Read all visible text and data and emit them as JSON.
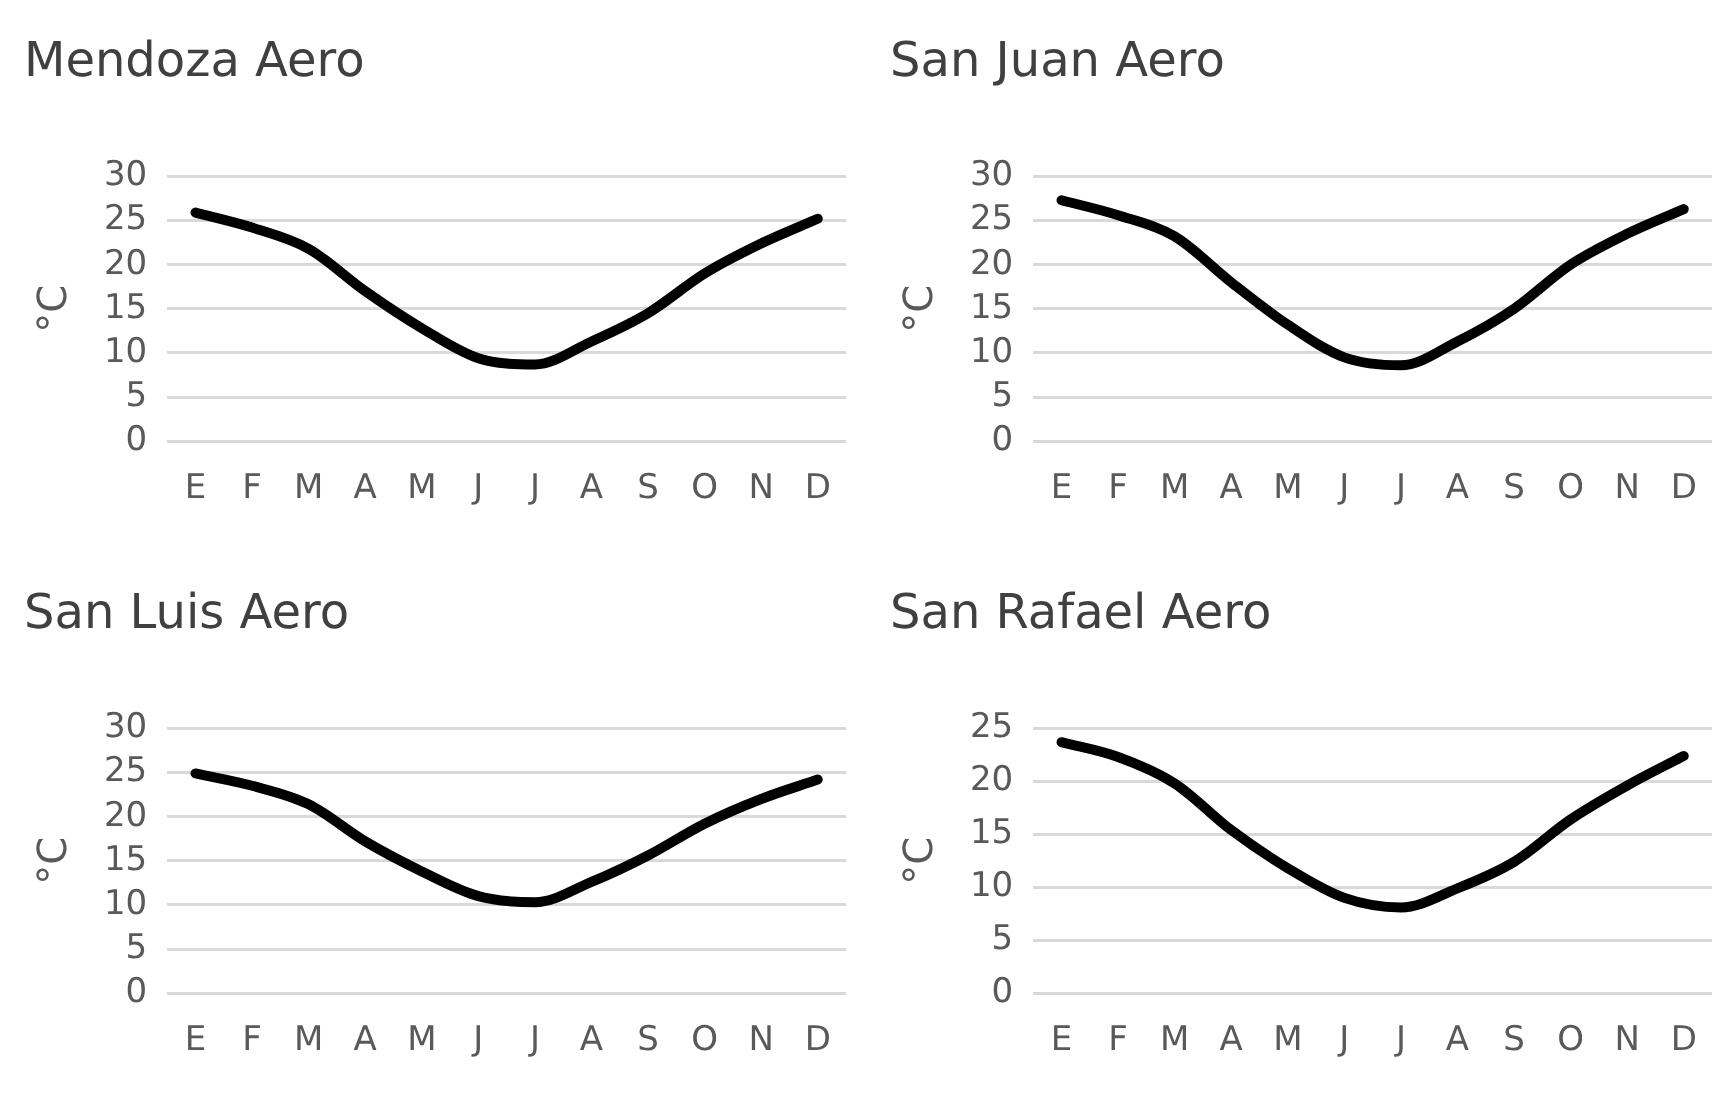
{
  "chart_data": [
    {
      "type": "line",
      "title": "Mendoza Aero",
      "ylabel": "°C",
      "categories": [
        "E",
        "F",
        "M",
        "A",
        "M",
        "J",
        "J",
        "A",
        "S",
        "O",
        "N",
        "D"
      ],
      "series": [
        {
          "color": "#000000",
          "values": [
            25.9,
            24.2,
            21.8,
            17,
            12.8,
            9.4,
            8.7,
            11.3,
            14.5,
            19,
            22.4,
            25.2
          ]
        }
      ],
      "ylim": [
        0,
        30
      ],
      "yticks": [
        0,
        5,
        10,
        15,
        20,
        25,
        30
      ],
      "grid": "y",
      "legend": false,
      "marker": "none"
    },
    {
      "type": "line",
      "title": "San Juan Aero",
      "ylabel": "°C",
      "categories": [
        "E",
        "F",
        "M",
        "A",
        "M",
        "J",
        "J",
        "A",
        "S",
        "O",
        "N",
        "D"
      ],
      "series": [
        {
          "color": "#000000",
          "values": [
            27.3,
            25.6,
            23.2,
            18,
            13.2,
            9.5,
            8.6,
            11.3,
            15,
            20,
            23.5,
            26.3
          ]
        }
      ],
      "ylim": [
        0,
        30
      ],
      "yticks": [
        0,
        5,
        10,
        15,
        20,
        25,
        30
      ],
      "grid": "y",
      "legend": false,
      "marker": "none"
    },
    {
      "type": "line",
      "title": "San Luis Aero",
      "ylabel": "°C",
      "categories": [
        "E",
        "F",
        "M",
        "A",
        "M",
        "J",
        "J",
        "A",
        "S",
        "O",
        "N",
        "D"
      ],
      "series": [
        {
          "color": "#000000",
          "values": [
            24.9,
            23.5,
            21.4,
            17.2,
            13.8,
            11,
            10.3,
            12.6,
            15.6,
            19.2,
            22,
            24.2
          ]
        }
      ],
      "ylim": [
        0,
        30
      ],
      "yticks": [
        0,
        5,
        10,
        15,
        20,
        25,
        30
      ],
      "grid": "y",
      "legend": false,
      "marker": "none"
    },
    {
      "type": "line",
      "title": "San Rafael Aero",
      "ylabel": "°C",
      "categories": [
        "E",
        "F",
        "M",
        "A",
        "M",
        "J",
        "J",
        "A",
        "S",
        "O",
        "N",
        "D"
      ],
      "series": [
        {
          "color": "#000000",
          "values": [
            23.7,
            22.3,
            19.8,
            15.4,
            11.8,
            9,
            8.1,
            9.9,
            12.4,
            16.4,
            19.6,
            22.4
          ]
        }
      ],
      "ylim": [
        0,
        25
      ],
      "yticks": [
        0,
        5,
        10,
        15,
        20,
        25
      ],
      "grid": "y",
      "legend": false,
      "marker": "none"
    }
  ]
}
